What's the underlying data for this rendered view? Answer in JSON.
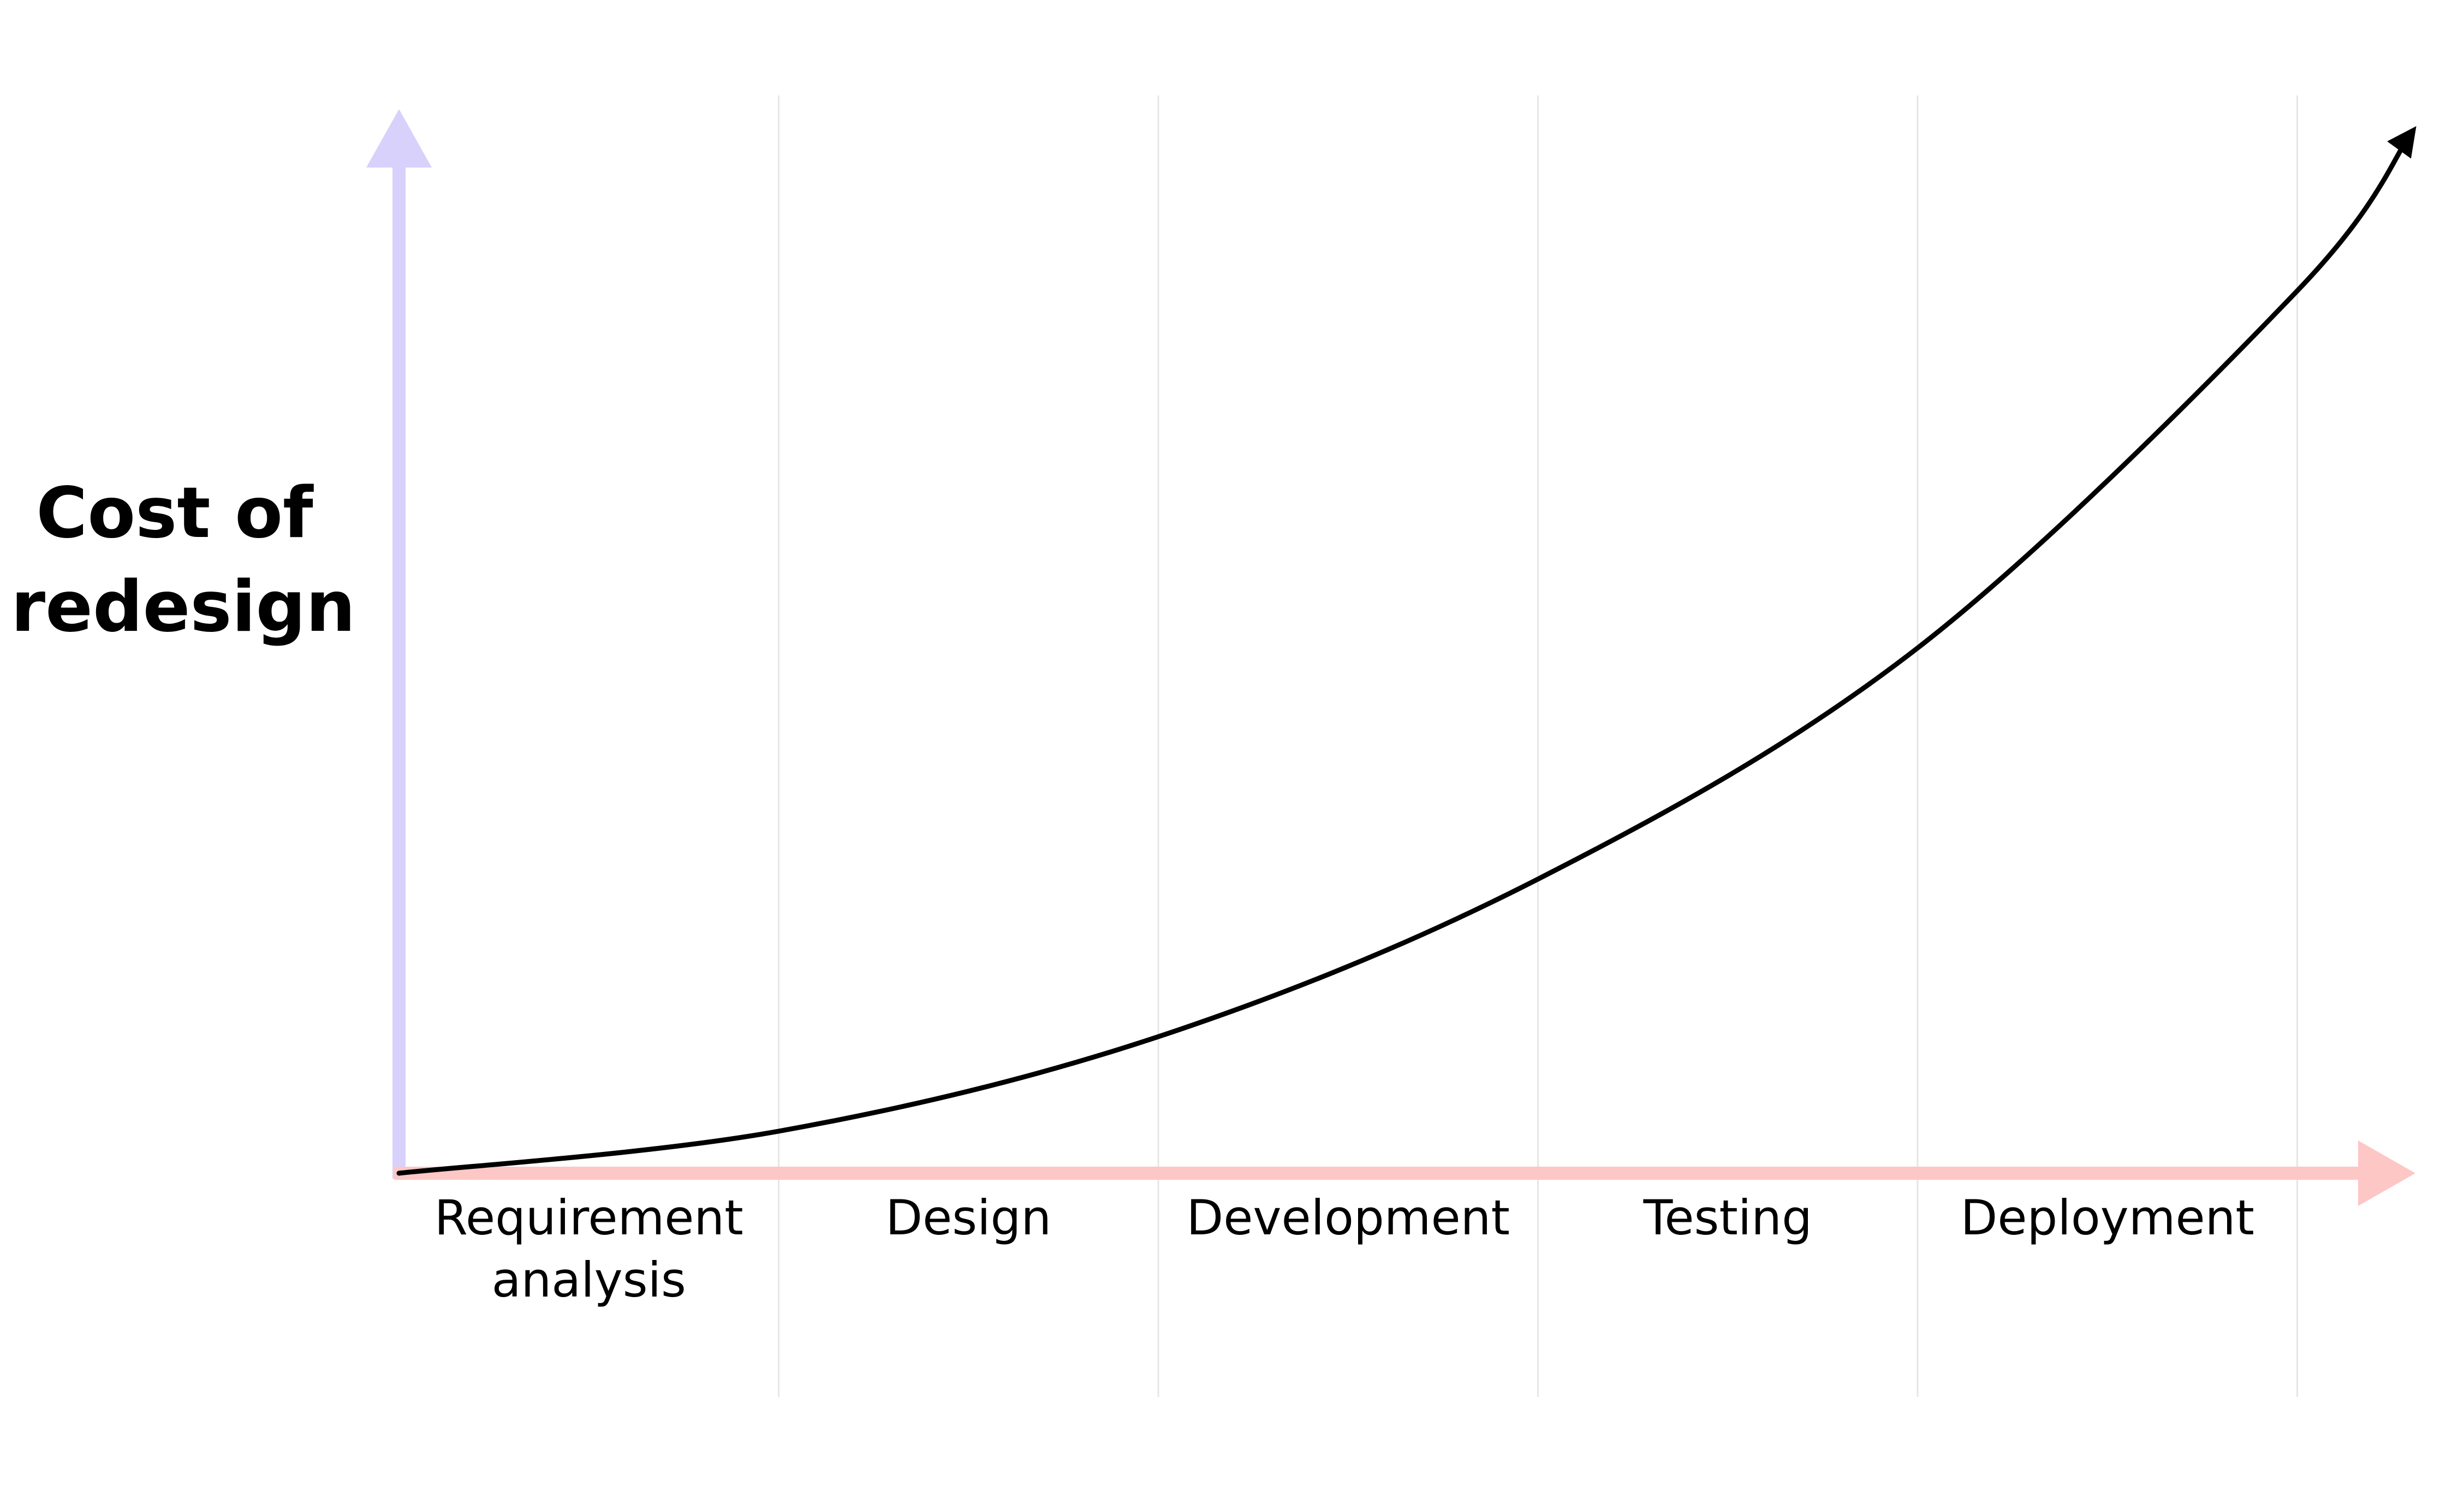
{
  "chart_data": {
    "type": "line",
    "title": "",
    "ylabel": "Cost of\nredesign",
    "xlabel": "",
    "categories": [
      "Requirement\nanalysis",
      "Design",
      "Development",
      "Testing",
      "Deployment"
    ],
    "grid": "vertical",
    "series": [
      {
        "x": [
          0,
          1,
          2,
          3,
          4,
          5,
          5.3
        ],
        "values": [
          0,
          0.04,
          0.13,
          0.28,
          0.5,
          0.84,
          0.99
        ],
        "color": "#000000"
      }
    ],
    "colors": {
      "y_axis": "#d7d1fb",
      "x_axis": "#fdc7c5",
      "grid": "#e6e6e6",
      "curve": "#000000"
    }
  }
}
